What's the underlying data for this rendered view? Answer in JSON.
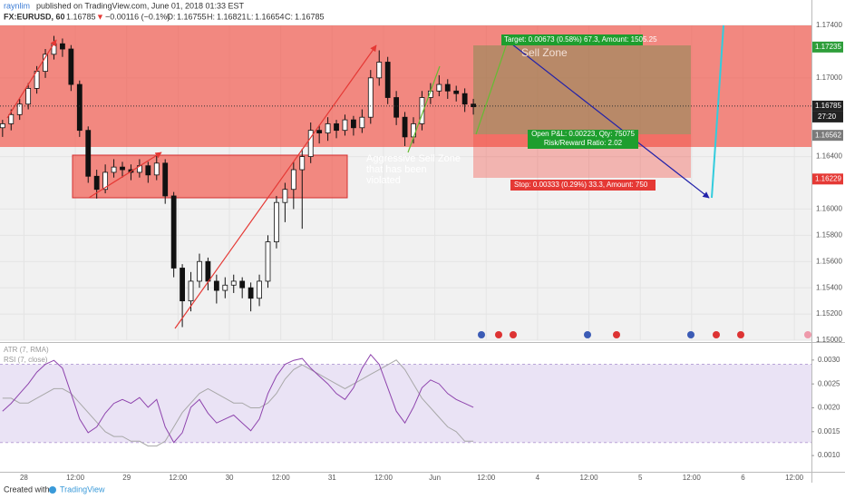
{
  "header": {
    "author": "raynlim",
    "published": "published on TradingView.com, June 01, 2018 01:33 EST"
  },
  "legend": {
    "symbol": "FX:EURUSD, 60",
    "last": "1.16785",
    "change": "−0.00116 (−0.1%)",
    "open_label": "O:",
    "open": "1.16755",
    "high_label": "H:",
    "high": "1.16821",
    "low_label": "L:",
    "low": "1.16654",
    "close_label": "C:",
    "close": "1.16785"
  },
  "chart_data": {
    "type": "candlestick",
    "x": [
      -5,
      -3,
      -1,
      1,
      3,
      5,
      7,
      9,
      11,
      13,
      15,
      17,
      19,
      21,
      23,
      25,
      27,
      29,
      31,
      33,
      35,
      37,
      39,
      41,
      43,
      45,
      47,
      49,
      51,
      53,
      55,
      57,
      59,
      61,
      63,
      65,
      67,
      69,
      71,
      73,
      75,
      77,
      79,
      81,
      83,
      85,
      87,
      89,
      91,
      93,
      95,
      97,
      99,
      101,
      103,
      105
    ],
    "candles": [
      [
        1.1662,
        1.1668,
        1.1655,
        1.1665
      ],
      [
        1.1665,
        1.1676,
        1.166,
        1.1672
      ],
      [
        1.1672,
        1.1684,
        1.1668,
        1.168
      ],
      [
        1.168,
        1.1696,
        1.1676,
        1.1692
      ],
      [
        1.1692,
        1.1709,
        1.1688,
        1.1705
      ],
      [
        1.1705,
        1.1722,
        1.17,
        1.1718
      ],
      [
        1.1718,
        1.1732,
        1.1714,
        1.1726
      ],
      [
        1.1726,
        1.173,
        1.1716,
        1.1722
      ],
      [
        1.1722,
        1.1725,
        1.169,
        1.1695
      ],
      [
        1.1695,
        1.1698,
        1.1655,
        1.166
      ],
      [
        1.166,
        1.1663,
        1.162,
        1.1625
      ],
      [
        1.1625,
        1.163,
        1.1608,
        1.1615
      ],
      [
        1.1615,
        1.1634,
        1.1612,
        1.1628
      ],
      [
        1.1628,
        1.1638,
        1.1624,
        1.1632
      ],
      [
        1.1632,
        1.1636,
        1.1624,
        1.163
      ],
      [
        1.163,
        1.1634,
        1.1622,
        1.1628
      ],
      [
        1.1628,
        1.1638,
        1.1624,
        1.1633
      ],
      [
        1.1633,
        1.1636,
        1.162,
        1.1626
      ],
      [
        1.1626,
        1.1642,
        1.1622,
        1.1635
      ],
      [
        1.1635,
        1.1638,
        1.1604,
        1.161
      ],
      [
        1.161,
        1.1613,
        1.1548,
        1.1555
      ],
      [
        1.1555,
        1.1558,
        1.151,
        1.153
      ],
      [
        1.153,
        1.1552,
        1.1522,
        1.1545
      ],
      [
        1.1545,
        1.1566,
        1.154,
        1.156
      ],
      [
        1.156,
        1.1563,
        1.1538,
        1.1545
      ],
      [
        1.1545,
        1.155,
        1.1528,
        1.1538
      ],
      [
        1.1538,
        1.1548,
        1.1532,
        1.1542
      ],
      [
        1.1542,
        1.155,
        1.1536,
        1.1545
      ],
      [
        1.1545,
        1.1548,
        1.1532,
        1.154
      ],
      [
        1.154,
        1.1544,
        1.1522,
        1.1532
      ],
      [
        1.1532,
        1.155,
        1.1526,
        1.1545
      ],
      [
        1.1545,
        1.158,
        1.154,
        1.1575
      ],
      [
        1.1575,
        1.161,
        1.157,
        1.1605
      ],
      [
        1.1605,
        1.162,
        1.159,
        1.1615
      ],
      [
        1.1615,
        1.1636,
        1.16,
        1.163
      ],
      [
        1.163,
        1.1646,
        1.1585,
        1.164
      ],
      [
        1.164,
        1.1666,
        1.1635,
        1.166
      ],
      [
        1.166,
        1.1664,
        1.165,
        1.1658
      ],
      [
        1.1658,
        1.167,
        1.1652,
        1.1665
      ],
      [
        1.1665,
        1.1668,
        1.1654,
        1.166
      ],
      [
        1.166,
        1.1672,
        1.1656,
        1.1668
      ],
      [
        1.1668,
        1.1671,
        1.1656,
        1.1662
      ],
      [
        1.1662,
        1.1676,
        1.1658,
        1.167
      ],
      [
        1.167,
        1.1706,
        1.1665,
        1.17
      ],
      [
        1.17,
        1.1721,
        1.1694,
        1.1712
      ],
      [
        1.1712,
        1.1716,
        1.168,
        1.1685
      ],
      [
        1.1685,
        1.169,
        1.1664,
        1.167
      ],
      [
        1.167,
        1.1674,
        1.1648,
        1.1655
      ],
      [
        1.1655,
        1.167,
        1.165,
        1.1665
      ],
      [
        1.1665,
        1.169,
        1.166,
        1.1685
      ],
      [
        1.1685,
        1.1696,
        1.168,
        1.169
      ],
      [
        1.169,
        1.1702,
        1.1686,
        1.1695
      ],
      [
        1.1695,
        1.1699,
        1.1684,
        1.169
      ],
      [
        1.169,
        1.1694,
        1.1682,
        1.1688
      ],
      [
        1.1688,
        1.1692,
        1.1674,
        1.168
      ],
      [
        1.168,
        1.1684,
        1.1672,
        1.1678
      ]
    ],
    "xlim": [
      -5.6,
      184
    ],
    "xticks": [
      {
        "value": 0,
        "label": "28"
      },
      {
        "value": 12,
        "label": "12:00"
      },
      {
        "value": 24,
        "label": "29"
      },
      {
        "value": 36,
        "label": "12:00"
      },
      {
        "value": 48,
        "label": "30"
      },
      {
        "value": 60,
        "label": "12:00"
      },
      {
        "value": 72,
        "label": "31"
      },
      {
        "value": 84,
        "label": "12:00"
      },
      {
        "value": 96,
        "label": "Jun"
      },
      {
        "value": 108,
        "label": "12:00"
      },
      {
        "value": 120,
        "label": "4"
      },
      {
        "value": 132,
        "label": "12:00"
      },
      {
        "value": 144,
        "label": "5"
      },
      {
        "value": 156,
        "label": "12:00"
      },
      {
        "value": 168,
        "label": "6"
      },
      {
        "value": 180,
        "label": "12:00"
      }
    ],
    "ylim": [
      1.15,
      1.174
    ],
    "yticks": [
      {
        "value": 1.15,
        "label": "1.15000"
      },
      {
        "value": 1.152,
        "label": "1.15200"
      },
      {
        "value": 1.154,
        "label": "1.15400"
      },
      {
        "value": 1.156,
        "label": "1.15600"
      },
      {
        "value": 1.158,
        "label": "1.15800"
      },
      {
        "value": 1.16,
        "label": "1.16000"
      },
      {
        "value": 1.164,
        "label": "1.16400"
      },
      {
        "value": 1.17,
        "label": "1.17000"
      },
      {
        "value": 1.174,
        "label": "1.17400"
      }
    ],
    "price_labels": [
      {
        "value": 1.17235,
        "label": "1.17235",
        "color": "#2e9e3a"
      },
      {
        "value": 1.16785,
        "label": "1.16785",
        "color": "#222222"
      },
      {
        "value": 1.16562,
        "label": "1.16562",
        "color": "#7a7a7a"
      },
      {
        "value": 1.16229,
        "label": "1.16229",
        "color": "#e53935"
      }
    ],
    "countdown": "27:20",
    "indicators": [
      {
        "name": "ATR (7, RMA)",
        "color": "#a8a8a8",
        "axis": "y2",
        "values": [
          0.0022,
          0.0022,
          0.0021,
          0.0021,
          0.0022,
          0.0023,
          0.0024,
          0.0024,
          0.0023,
          0.0021,
          0.0019,
          0.0017,
          0.0015,
          0.0014,
          0.0014,
          0.0013,
          0.0013,
          0.0012,
          0.0012,
          0.0013,
          0.0016,
          0.0019,
          0.0021,
          0.0023,
          0.0024,
          0.0023,
          0.0022,
          0.0021,
          0.0021,
          0.002,
          0.002,
          0.0021,
          0.0023,
          0.0026,
          0.0028,
          0.0029,
          0.0028,
          0.0027,
          0.0026,
          0.0025,
          0.0024,
          0.0025,
          0.0026,
          0.0027,
          0.0028,
          0.0029,
          0.003,
          0.0028,
          0.0025,
          0.0022,
          0.002,
          0.0018,
          0.0016,
          0.0015,
          0.0013,
          0.0013
        ]
      },
      {
        "name": "RSI (7, close)",
        "color": "#8e44ad",
        "axis": "rsi",
        "values": [
          46,
          50,
          55,
          60,
          66,
          70,
          72,
          68,
          55,
          42,
          35,
          38,
          45,
          50,
          52,
          50,
          53,
          48,
          52,
          38,
          30,
          35,
          48,
          52,
          45,
          40,
          42,
          44,
          40,
          36,
          42,
          55,
          64,
          70,
          72,
          73,
          68,
          64,
          60,
          55,
          52,
          58,
          68,
          75,
          70,
          58,
          46,
          40,
          48,
          58,
          62,
          60,
          55,
          52,
          50,
          48
        ]
      }
    ],
    "y2lim": [
      0.00066,
      0.00332
    ],
    "y2ticks": [
      {
        "value": 0.001,
        "label": "0.0010"
      },
      {
        "value": 0.0015,
        "label": "0.0015"
      },
      {
        "value": 0.002,
        "label": "0.0020"
      },
      {
        "value": 0.0025,
        "label": "0.0025"
      },
      {
        "value": 0.003,
        "label": "0.0030"
      }
    ],
    "rsi_lim": [
      15,
      80
    ],
    "rsi_band": [
      30,
      70
    ],
    "annotations": {
      "target": "Target: 0.00673 (0.58%) 67.3, Amount: 1505.25",
      "sell_zone": "Sell Zone",
      "open_pl": "Open P&L: 0.00223, Qty: 75075",
      "risk_reward": "Risk/Reward Ratio: 2.02",
      "stop": "Stop: 0.00333 (0.29%) 33.3, Amount: 750",
      "aggressive": [
        "Aggressive Sell Zone",
        "that has been",
        "violated"
      ]
    }
  },
  "footer": {
    "created": "Created with",
    "brand": "TradingView"
  }
}
